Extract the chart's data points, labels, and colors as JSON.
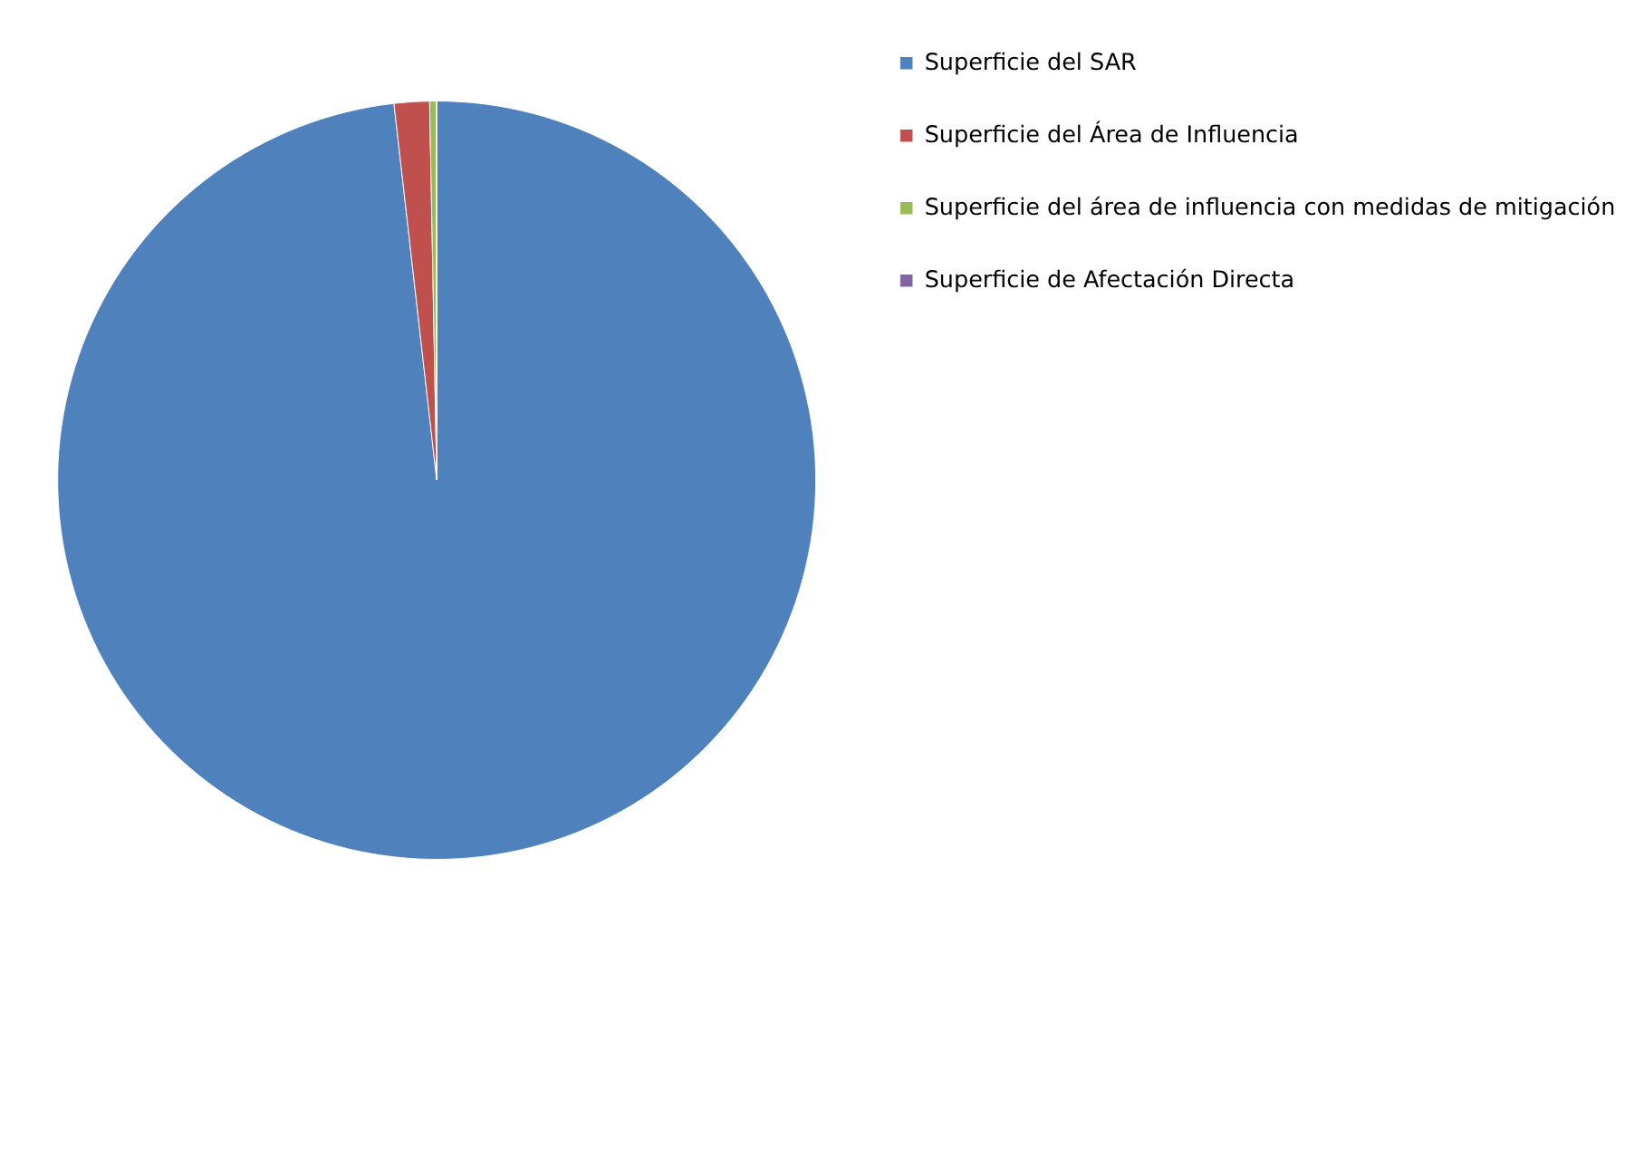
{
  "chart_data": {
    "type": "pie",
    "categories": [
      "Superficie del SAR",
      "Superficie del Área de Influencia",
      "Superficie del área de influencia con medidas de mitigación",
      "Superficie de Afectación Directa"
    ],
    "values": [
      98.2,
      1.5,
      0.28,
      0.02
    ],
    "colors": [
      "#4f81bd",
      "#c0504d",
      "#9bbb59",
      "#8064a2"
    ],
    "legend": "right"
  }
}
